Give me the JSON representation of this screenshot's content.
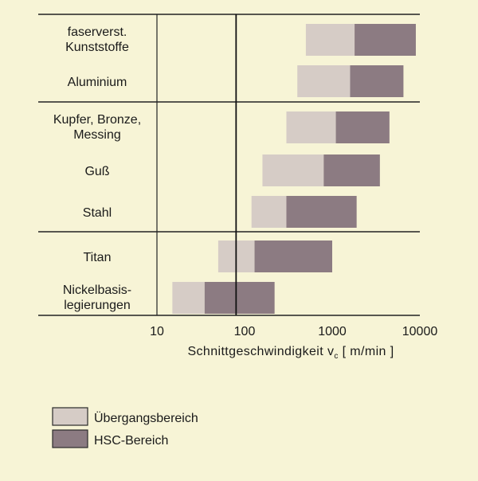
{
  "chart_data": {
    "type": "bar",
    "orientation": "horizontal",
    "x_scale": "log",
    "xlabel": "Schnittgeschwindigkeit  v",
    "xlabel_subscript": "c",
    "xlabel_unit": " [ m/min ]",
    "xlim": [
      10,
      10000
    ],
    "x_ticks": [
      10,
      100,
      1000,
      10000
    ],
    "x_tick_labels": [
      "10",
      "100",
      "1000",
      "10000"
    ],
    "categories": [
      [
        "faserverst.",
        "Kunststoffe"
      ],
      [
        "Aluminium"
      ],
      [
        "Kupfer, Bronze,",
        "Messing"
      ],
      [
        "Guß"
      ],
      [
        "Stahl"
      ],
      [
        "Titan"
      ],
      [
        "Nickelbasis-",
        "legierungen"
      ]
    ],
    "groups": [
      [
        0,
        1
      ],
      [
        2,
        3,
        4
      ],
      [
        5,
        6
      ]
    ],
    "series": [
      {
        "name": "Übergangsbereich",
        "color": "#d6ccc6",
        "ranges": [
          [
            500,
            1800
          ],
          [
            400,
            1600
          ],
          [
            300,
            1100
          ],
          [
            160,
            800
          ],
          [
            120,
            300
          ],
          [
            50,
            130
          ],
          [
            15,
            35
          ]
        ]
      },
      {
        "name": "HSC-Bereich",
        "color": "#8c7b82",
        "ranges": [
          [
            1800,
            9000
          ],
          [
            1600,
            6500
          ],
          [
            1100,
            4500
          ],
          [
            800,
            3500
          ],
          [
            300,
            1900
          ],
          [
            130,
            1000
          ],
          [
            35,
            220
          ]
        ]
      }
    ],
    "vertical_reference_x": 80,
    "legend_position": "bottom-left"
  }
}
